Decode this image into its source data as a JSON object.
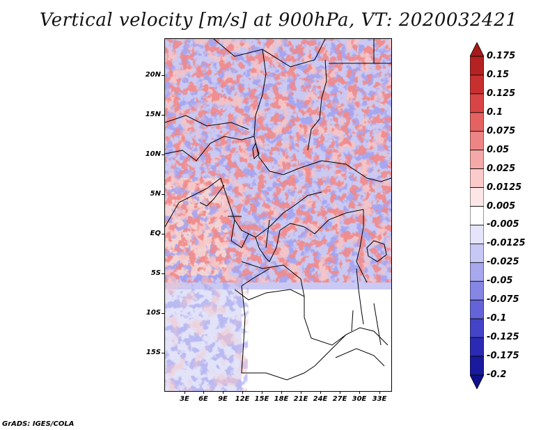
{
  "title": "Vertical velocity [m/s] at 900hPa, VT: 2020032421",
  "lat_labels": [
    "20N",
    "15N",
    "10N",
    "5N",
    "EQ",
    "5S",
    "10S",
    "15S"
  ],
  "lon_labels": [
    "3E",
    "6E",
    "9E",
    "12E",
    "15E",
    "18E",
    "21E",
    "24E",
    "27E",
    "30E",
    "33E"
  ],
  "colorbar": {
    "labels": [
      "0.175",
      "0.15",
      "0.125",
      "0.1",
      "0.075",
      "0.05",
      "0.025",
      "0.0125",
      "0.005",
      "-0.005",
      "-0.0125",
      "-0.025",
      "-0.05",
      "-0.075",
      "-0.1",
      "-0.125",
      "-0.175",
      "-0.2"
    ],
    "colors": [
      "#a51a1a",
      "#b42222",
      "#c83030",
      "#d94545",
      "#e56262",
      "#ee8585",
      "#f5a8a8",
      "#fbcaca",
      "#fde6e6",
      "#ffffff",
      "#e4e4fb",
      "#c8c8f5",
      "#a8a8ee",
      "#8686e4",
      "#6464d8",
      "#4444c8",
      "#2a2ab4",
      "#1a1a9e",
      "#10108a"
    ]
  },
  "credit": "GrADS: IGES/COLA"
}
